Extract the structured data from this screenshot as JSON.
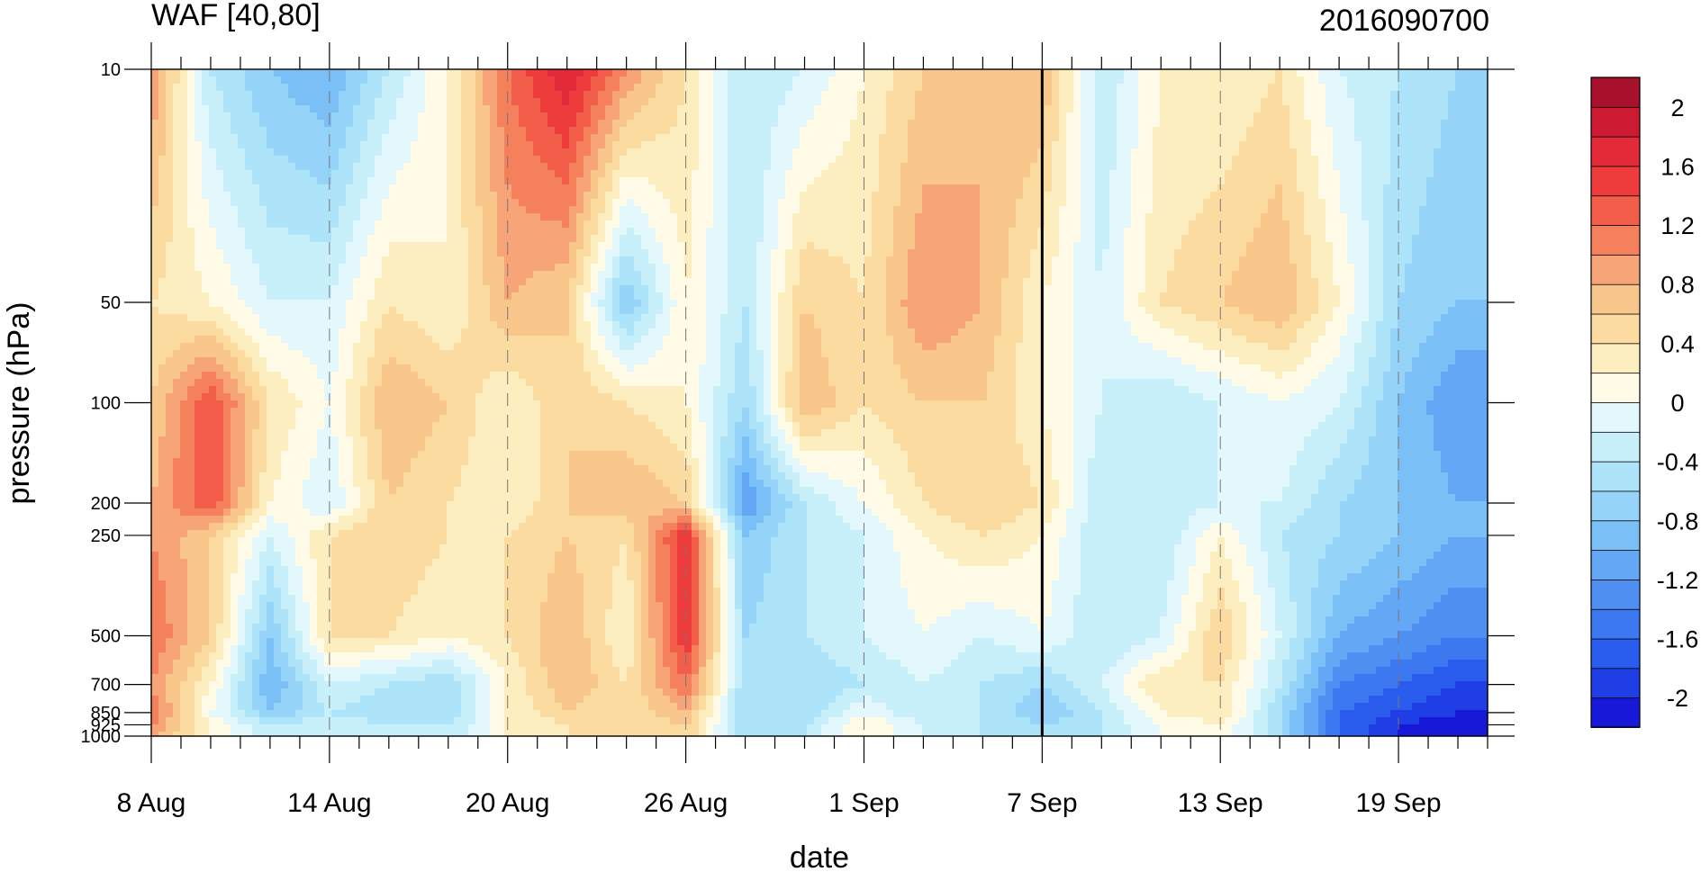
{
  "chart_data": {
    "type": "heatmap",
    "title": "WAF [40,80]",
    "date_label": "2016090700",
    "xlabel": "date",
    "ylabel": "pressure (hPa)",
    "x_axis": {
      "unit": "day",
      "start": "8 Aug",
      "days": 45,
      "tick_labels": [
        {
          "day": 0,
          "label": "8 Aug"
        },
        {
          "day": 6,
          "label": "14 Aug"
        },
        {
          "day": 12,
          "label": "20 Aug"
        },
        {
          "day": 18,
          "label": "26 Aug"
        },
        {
          "day": 24,
          "label": "1 Sep"
        },
        {
          "day": 30,
          "label": "7 Sep"
        },
        {
          "day": 36,
          "label": "13 Sep"
        },
        {
          "day": 42,
          "label": "19 Sep"
        }
      ],
      "highlight_day": 30
    },
    "y_axis": {
      "scale": "log",
      "reversed": true,
      "range": [
        10,
        1000
      ],
      "levels": [
        10,
        50,
        100,
        200,
        250,
        500,
        700,
        850,
        925,
        1000
      ],
      "tick_labels": [
        "10",
        "50",
        "100",
        "200",
        "250",
        "500",
        "700",
        "850",
        "925",
        "1000"
      ]
    },
    "colorbar": {
      "levels": [
        -2.2,
        -2.0,
        -1.8,
        -1.6,
        -1.4,
        -1.2,
        -1.0,
        -0.8,
        -0.6,
        -0.4,
        -0.2,
        0,
        0.2,
        0.4,
        0.6,
        0.8,
        1.0,
        1.2,
        1.4,
        1.6,
        1.8,
        2.0,
        2.2
      ],
      "colors": [
        "#1818d8",
        "#1f3ee6",
        "#2a5cee",
        "#3c78f0",
        "#4f8ff2",
        "#64a7f4",
        "#7ac0f6",
        "#95d3f8",
        "#aee4fa",
        "#c8f0fb",
        "#e2f8fc",
        "#fffbe6",
        "#fdeec0",
        "#fbdba0",
        "#f9c68c",
        "#f7a478",
        "#f4805c",
        "#f25e4a",
        "#ee3c3c",
        "#e32a38",
        "#cc1a32",
        "#a8102c"
      ],
      "tick_labels": [
        {
          "value": 2.0,
          "label": "2"
        },
        {
          "value": 1.6,
          "label": "1.6"
        },
        {
          "value": 1.2,
          "label": "1.2"
        },
        {
          "value": 0.8,
          "label": "0.8"
        },
        {
          "value": 0.4,
          "label": "0.4"
        },
        {
          "value": 0,
          "label": "0"
        },
        {
          "value": -0.4,
          "label": "-0.4"
        },
        {
          "value": -0.8,
          "label": "-0.8"
        },
        {
          "value": -1.2,
          "label": "-1.2"
        },
        {
          "value": -1.6,
          "label": "-1.6"
        },
        {
          "value": -2.0,
          "label": "-2"
        }
      ]
    },
    "field": {
      "note": "approximate WAF values read from the contour plot; rows follow y_axis.levels, columns follow days",
      "days": [
        0,
        2,
        4,
        6,
        8,
        10,
        12,
        14,
        16,
        18,
        20,
        22,
        24,
        26,
        28,
        30,
        32,
        34,
        36,
        38,
        40,
        42,
        44
      ],
      "values": [
        [
          1.0,
          -0.4,
          -0.8,
          -1.0,
          -0.4,
          0.2,
          1.2,
          1.8,
          1.0,
          0.4,
          -0.4,
          -0.2,
          0.2,
          0.6,
          0.8,
          0.8,
          -0.4,
          0.2,
          0.2,
          0.4,
          -0.2,
          -0.4,
          -0.6
        ],
        [
          0.4,
          0.2,
          -0.2,
          -0.2,
          0.4,
          0.2,
          0.8,
          0.6,
          -0.8,
          0.2,
          -0.4,
          0.6,
          0.4,
          1.0,
          0.8,
          0.2,
          -0.2,
          0.4,
          0.6,
          0.8,
          0.2,
          -0.6,
          -0.8
        ],
        [
          0.6,
          1.4,
          0.4,
          0.0,
          0.8,
          0.6,
          0.2,
          0.6,
          0.4,
          0.2,
          -0.6,
          0.8,
          0.4,
          0.6,
          0.6,
          0.2,
          -0.2,
          -0.4,
          -0.2,
          0.0,
          -0.2,
          -0.8,
          -1.2
        ],
        [
          0.8,
          1.4,
          0.2,
          -0.2,
          0.6,
          0.4,
          0.2,
          0.6,
          0.8,
          0.6,
          -1.2,
          -0.4,
          0.0,
          0.4,
          0.6,
          0.4,
          -0.4,
          -0.4,
          -0.2,
          -0.2,
          -0.6,
          -0.8,
          -1.0
        ],
        [
          1.0,
          0.6,
          -0.2,
          0.4,
          0.6,
          0.4,
          0.4,
          0.6,
          0.4,
          1.6,
          -0.8,
          -0.4,
          -0.2,
          0.2,
          0.4,
          0.2,
          -0.4,
          -0.4,
          0.2,
          -0.4,
          -0.6,
          -0.8,
          -1.0
        ],
        [
          1.2,
          0.6,
          -0.8,
          0.4,
          0.4,
          0.2,
          0.4,
          0.8,
          0.2,
          1.6,
          -0.6,
          -0.4,
          -0.2,
          0.0,
          -0.2,
          0.0,
          -0.4,
          -0.2,
          0.6,
          -0.2,
          -1.0,
          -1.2,
          -1.4
        ],
        [
          1.0,
          0.2,
          -1.0,
          -0.2,
          -0.4,
          -0.6,
          0.2,
          0.8,
          0.4,
          1.2,
          -0.6,
          -0.6,
          -0.4,
          -0.2,
          -0.4,
          -0.6,
          -0.2,
          0.4,
          0.4,
          -0.4,
          -1.4,
          -1.6,
          -1.8
        ],
        [
          1.2,
          0.0,
          -0.8,
          -0.4,
          -0.6,
          -0.6,
          0.2,
          0.6,
          0.4,
          0.8,
          -0.6,
          -0.6,
          0.0,
          -0.4,
          -0.4,
          -0.8,
          -0.4,
          0.2,
          0.4,
          -0.6,
          -1.6,
          -1.8,
          -2.0
        ],
        [
          1.0,
          0.2,
          -0.4,
          -0.2,
          -0.4,
          -0.4,
          0.2,
          0.4,
          0.4,
          0.6,
          -0.6,
          -0.4,
          0.2,
          -0.2,
          -0.4,
          -0.6,
          -0.4,
          0.0,
          0.2,
          -0.6,
          -1.6,
          -2.0,
          -2.2
        ],
        [
          0.8,
          0.2,
          -0.4,
          -0.2,
          -0.4,
          -0.4,
          0.2,
          0.4,
          0.4,
          0.6,
          -0.6,
          -0.4,
          0.2,
          -0.2,
          -0.4,
          -0.6,
          -0.4,
          0.0,
          0.2,
          -0.6,
          -1.6,
          -2.0,
          -2.2
        ]
      ]
    }
  }
}
